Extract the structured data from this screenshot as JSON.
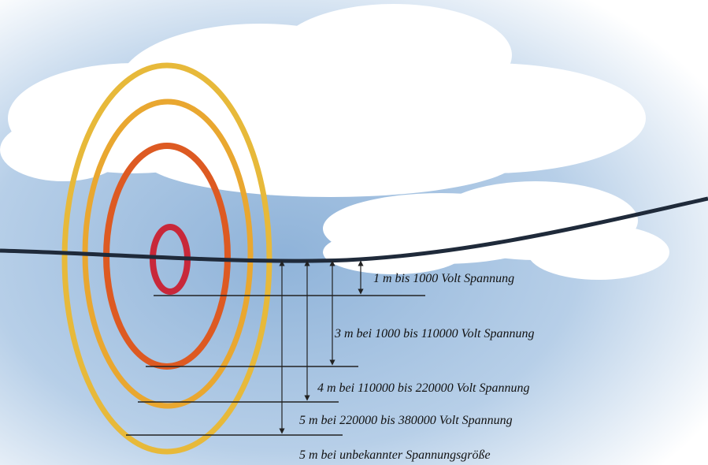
{
  "labels": [
    "1 m bis 1000 Volt Spannung",
    "3 m bei 1000 bis 110000 Volt Spannung",
    "4 m bei 110000 bis 220000 Volt Spannung",
    "5 m bei 220000 bis 380000 Volt Spannung",
    "5 m bei unbekannter Spannungsgröße"
  ]
}
